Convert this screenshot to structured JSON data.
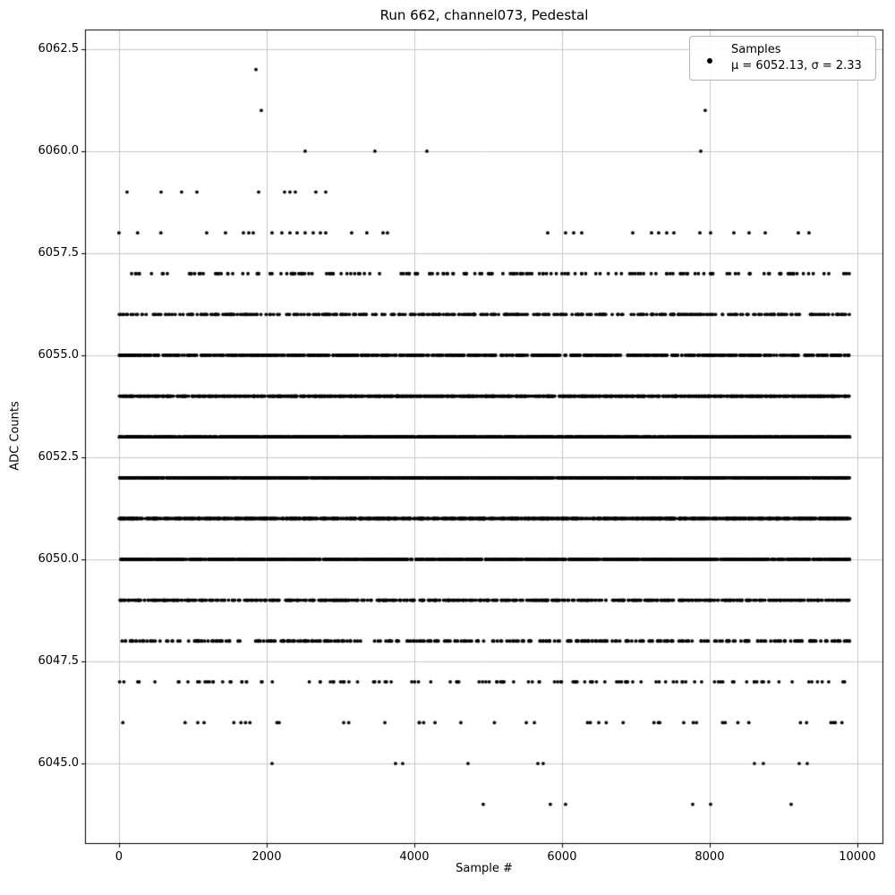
{
  "legend": {
    "line1": "Samples",
    "line2": "μ = 6052.13, σ = 2.33"
  },
  "colors": {
    "marker": "#000000",
    "grid": "#c8c8c8",
    "spine": "#000000",
    "text": "#000000",
    "legend_border": "#b3b3b3",
    "background": "#ffffff"
  },
  "chart_data": {
    "type": "scatter",
    "title": "Run 662, channel073, Pedestal",
    "xlabel": "Sample #",
    "ylabel": "ADC Counts",
    "xlim": [
      -460,
      10340
    ],
    "ylim": [
      6043.05,
      6062.98
    ],
    "x_range_samples": [
      0,
      9899
    ],
    "grid": true,
    "legend_position": "upper right",
    "marker": {
      "shape": "point",
      "color": "#000000",
      "radius_px": 1.9
    },
    "stats": {
      "mu": 6052.13,
      "sigma": 2.33
    },
    "xticks": {
      "values": [
        0,
        2000,
        4000,
        6000,
        8000,
        10000
      ],
      "labels": [
        "0",
        "2000",
        "4000",
        "6000",
        "8000",
        "10000"
      ]
    },
    "yticks": {
      "values": [
        6045.0,
        6047.5,
        6050.0,
        6052.5,
        6055.0,
        6057.5,
        6060.0,
        6062.5
      ],
      "labels": [
        "6045.0",
        "6047.5",
        "6050.0",
        "6052.5",
        "6055.0",
        "6057.5",
        "6060.0",
        "6062.5"
      ]
    },
    "bands": [
      {
        "adc": 6062,
        "x": [
          1855
        ]
      },
      {
        "adc": 6061,
        "x": [
          1927,
          7939
        ]
      },
      {
        "adc": 6060,
        "x": [
          2521,
          3466,
          4170,
          7879
        ]
      },
      {
        "adc": 6059,
        "x": [
          109,
          570,
          848,
          1055,
          1891,
          2242,
          2315,
          2388,
          2666,
          2800
        ]
      },
      {
        "adc": 6058,
        "x": [
          0,
          252,
          567,
          1188,
          1442,
          1685,
          1758,
          1818,
          2073,
          2206,
          2315,
          2412,
          2521,
          2630,
          2727,
          2800,
          3151,
          3357,
          3576,
          3636,
          5806,
          6048,
          6158,
          6267,
          6958,
          7212,
          7309,
          7418,
          7515,
          7867,
          8012,
          8327,
          8533,
          8752,
          9200,
          9345
        ]
      },
      {
        "adc": 6057,
        "count": 170
      },
      {
        "adc": 6056,
        "count": 420
      },
      {
        "adc": 6055,
        "count": 800
      },
      {
        "adc": 6054,
        "count": 1230
      },
      {
        "adc": 6053,
        "count": 1580
      },
      {
        "adc": 6052,
        "count": 1690
      },
      {
        "adc": 6051,
        "count": 1500
      },
      {
        "adc": 6050,
        "count": 1110
      },
      {
        "adc": 6049,
        "count": 690
      },
      {
        "adc": 6048,
        "count": 350
      },
      {
        "adc": 6047,
        "count": 120
      },
      {
        "adc": 6046,
        "count": 42
      },
      {
        "adc": 6045,
        "x": [
          2073,
          3745,
          3842,
          4727,
          5673,
          5745,
          8606,
          8727,
          9212,
          9321
        ]
      },
      {
        "adc": 6044,
        "x": [
          4933,
          5842,
          6048,
          7770,
          8012,
          9103
        ]
      }
    ]
  }
}
